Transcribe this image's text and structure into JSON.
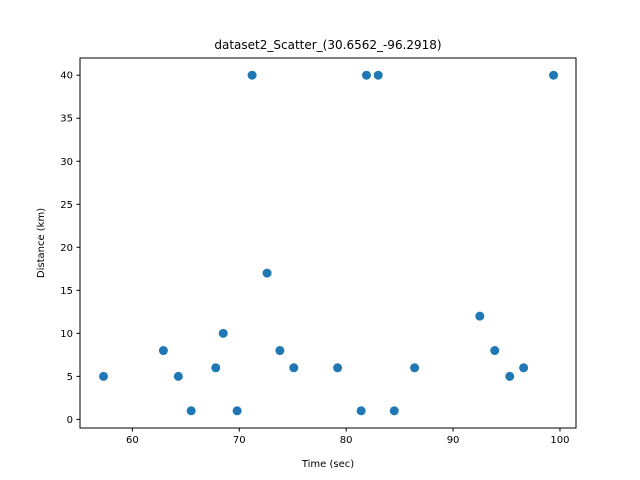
{
  "chart_data": {
    "type": "scatter",
    "title": "dataset2_Scatter_(30.6562_-96.2918)",
    "xlabel": "Time (sec)",
    "ylabel": "Distance (km)",
    "xlim": [
      55.1,
      101.5
    ],
    "ylim": [
      -1.0,
      42.0
    ],
    "xticks": [
      60,
      70,
      80,
      90,
      100
    ],
    "yticks": [
      0,
      5,
      10,
      15,
      20,
      25,
      30,
      35,
      40
    ],
    "grid": false,
    "marker_color": "#1f77b4",
    "points": [
      {
        "x": 57.3,
        "y": 5
      },
      {
        "x": 62.9,
        "y": 8
      },
      {
        "x": 64.3,
        "y": 5
      },
      {
        "x": 65.5,
        "y": 1
      },
      {
        "x": 67.8,
        "y": 6
      },
      {
        "x": 68.5,
        "y": 10
      },
      {
        "x": 69.8,
        "y": 1
      },
      {
        "x": 71.2,
        "y": 40
      },
      {
        "x": 72.6,
        "y": 17
      },
      {
        "x": 73.8,
        "y": 8
      },
      {
        "x": 75.1,
        "y": 6
      },
      {
        "x": 79.2,
        "y": 6
      },
      {
        "x": 81.4,
        "y": 1
      },
      {
        "x": 81.9,
        "y": 40
      },
      {
        "x": 83.0,
        "y": 40
      },
      {
        "x": 84.5,
        "y": 1
      },
      {
        "x": 86.4,
        "y": 6
      },
      {
        "x": 92.5,
        "y": 12
      },
      {
        "x": 93.9,
        "y": 8
      },
      {
        "x": 95.3,
        "y": 5
      },
      {
        "x": 96.6,
        "y": 6
      },
      {
        "x": 99.4,
        "y": 40
      }
    ]
  }
}
